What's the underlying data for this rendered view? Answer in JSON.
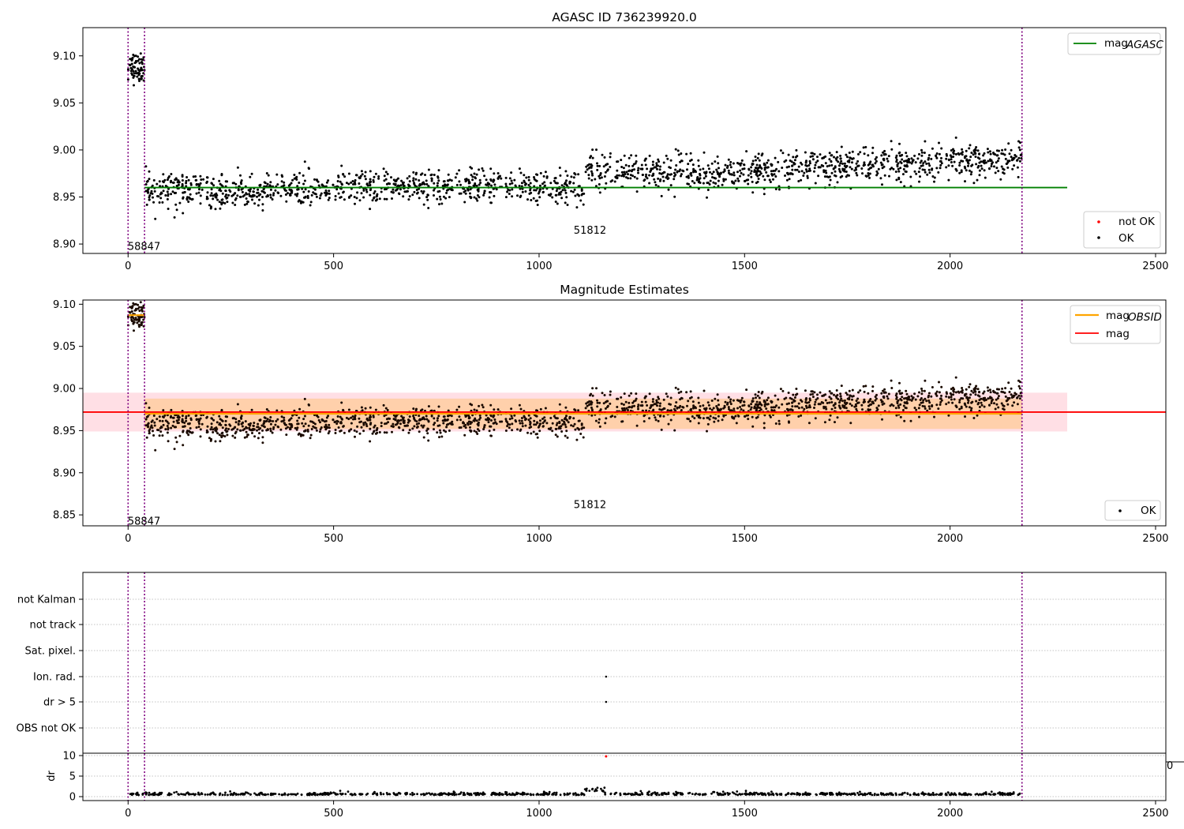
{
  "figure": {
    "panels": [
      {
        "title": "AGASC ID 736239920.0",
        "vlines_x": [
          0,
          40,
          2175
        ],
        "annotations": [
          {
            "x": -20,
            "y": 8.898,
            "text": "58847"
          },
          {
            "x": 1065,
            "y": 8.915,
            "text": "51812"
          }
        ],
        "legends": [
          {
            "loc": "upper right",
            "entries": [
              {
                "label": "mag",
                "subscript": "AGASC",
                "kind": "line",
                "color": "#008000"
              }
            ]
          },
          {
            "loc": "lower right",
            "entries": [
              {
                "label": "not OK",
                "kind": "marker",
                "color": "#ff0000"
              },
              {
                "label": "OK",
                "kind": "marker",
                "color": "#000000"
              }
            ]
          }
        ]
      },
      {
        "title": "Magnitude Estimates",
        "vlines_x": [
          0,
          40,
          2175
        ],
        "annotations": [
          {
            "x": -20,
            "y": 8.843,
            "text": "58847"
          },
          {
            "x": 1065,
            "y": 8.863,
            "text": "51812"
          }
        ],
        "legends": [
          {
            "loc": "upper right",
            "entries": [
              {
                "label": "mag",
                "subscript": "OBSID",
                "kind": "line",
                "color": "#ffa500"
              },
              {
                "label": "mag",
                "kind": "line",
                "color": "#ff0000"
              }
            ]
          },
          {
            "loc": "lower right",
            "entries": [
              {
                "label": "OK",
                "kind": "marker",
                "color": "#000000"
              }
            ]
          }
        ]
      },
      {
        "title": "",
        "vlines_x": [
          0,
          40,
          2175
        ],
        "flag_labels": [
          "not Kalman",
          "not track",
          "Sat. pixel.",
          "Ion. rad.",
          "dr > 5",
          "OBS not OK"
        ],
        "dr_ylabel": "dr",
        "clipped_tick_text": "0"
      }
    ]
  },
  "chart_data": [
    {
      "type": "scatter",
      "title": "AGASC ID 736239920.0",
      "xlabel": "",
      "ylabel": "",
      "xlim": [
        -110,
        2525
      ],
      "ylim": [
        8.89,
        9.13
      ],
      "x_ticks": [
        0,
        500,
        1000,
        1500,
        2000,
        2500
      ],
      "y_ticks": [
        8.9,
        8.95,
        9.0,
        9.05,
        9.1
      ],
      "grid": false,
      "series": [
        {
          "name": "OK",
          "color": "#000000",
          "segments": [
            {
              "x_range": [
                0,
                40
              ],
              "mean": 9.088,
              "spread": 0.008
            },
            {
              "x_range": [
                40,
                1110
              ],
              "mean_start": 8.958,
              "mean_end": 8.96,
              "spread": 0.009
            },
            {
              "x_range": [
                1110,
                1500
              ],
              "mean_start": 8.978,
              "mean_end": 8.975,
              "spread": 0.01
            },
            {
              "x_range": [
                1500,
                2175
              ],
              "mean_start": 8.978,
              "mean_end": 8.99,
              "spread": 0.009
            }
          ],
          "approx_points": 1900
        },
        {
          "name": "mag_AGASC",
          "kind": "line",
          "color": "#008000",
          "x": [
            40,
            2285
          ],
          "y": [
            8.96,
            8.96
          ]
        }
      ]
    },
    {
      "type": "scatter",
      "title": "Magnitude Estimates",
      "xlabel": "",
      "ylabel": "",
      "xlim": [
        -110,
        2525
      ],
      "ylim": [
        8.837,
        9.105
      ],
      "x_ticks": [
        0,
        500,
        1000,
        1500,
        2000,
        2500
      ],
      "y_ticks": [
        8.85,
        8.9,
        8.95,
        9.0,
        9.05,
        9.1
      ],
      "grid": false,
      "series": [
        {
          "name": "OK",
          "color": "#000000"
        },
        {
          "name": "mag_OBSID",
          "kind": "line",
          "color": "#ffa500",
          "x": [
            [
              0,
              40
            ],
            [
              40,
              2175
            ]
          ],
          "y": [
            [
              9.087,
              9.087
            ],
            [
              8.97,
              8.97
            ]
          ]
        },
        {
          "name": "mag",
          "kind": "line",
          "color": "#ff0000",
          "x": [
            -110,
            2525
          ],
          "y": [
            8.972,
            8.972
          ]
        }
      ],
      "bands": [
        {
          "color": "#ffc0cb",
          "opacity": 0.5,
          "x": [
            -110,
            2285
          ],
          "y": [
            8.949,
            8.995
          ]
        },
        {
          "color": "#ffa500",
          "opacity": 0.25,
          "x": [
            40,
            2175
          ],
          "y": [
            8.952,
            8.988
          ]
        }
      ]
    },
    {
      "type": "scatter",
      "title": "",
      "xlabel": "",
      "ylabel": "dr",
      "xlim": [
        -110,
        2525
      ],
      "x_ticks": [
        0,
        500,
        1000,
        1500,
        2000,
        2500
      ],
      "y_ticks": [
        0,
        5,
        10
      ],
      "flag_labels": [
        "not Kalman",
        "not track",
        "Sat. pixel.",
        "Ion. rad.",
        "dr > 5",
        "OBS not OK"
      ],
      "flag_points": [
        {
          "x": 1163,
          "flag": "Ion. rad."
        },
        {
          "x": 1163,
          "flag": "dr > 5"
        }
      ],
      "dr_series": {
        "color": "#000000",
        "baseline": 0.4,
        "spread": 0.3,
        "bump": {
          "x_range": [
            1110,
            1160
          ],
          "value": 1.6
        },
        "outlier": {
          "x": 1163,
          "y": 9.8,
          "color": "#ff0000"
        }
      },
      "grid": true
    }
  ]
}
